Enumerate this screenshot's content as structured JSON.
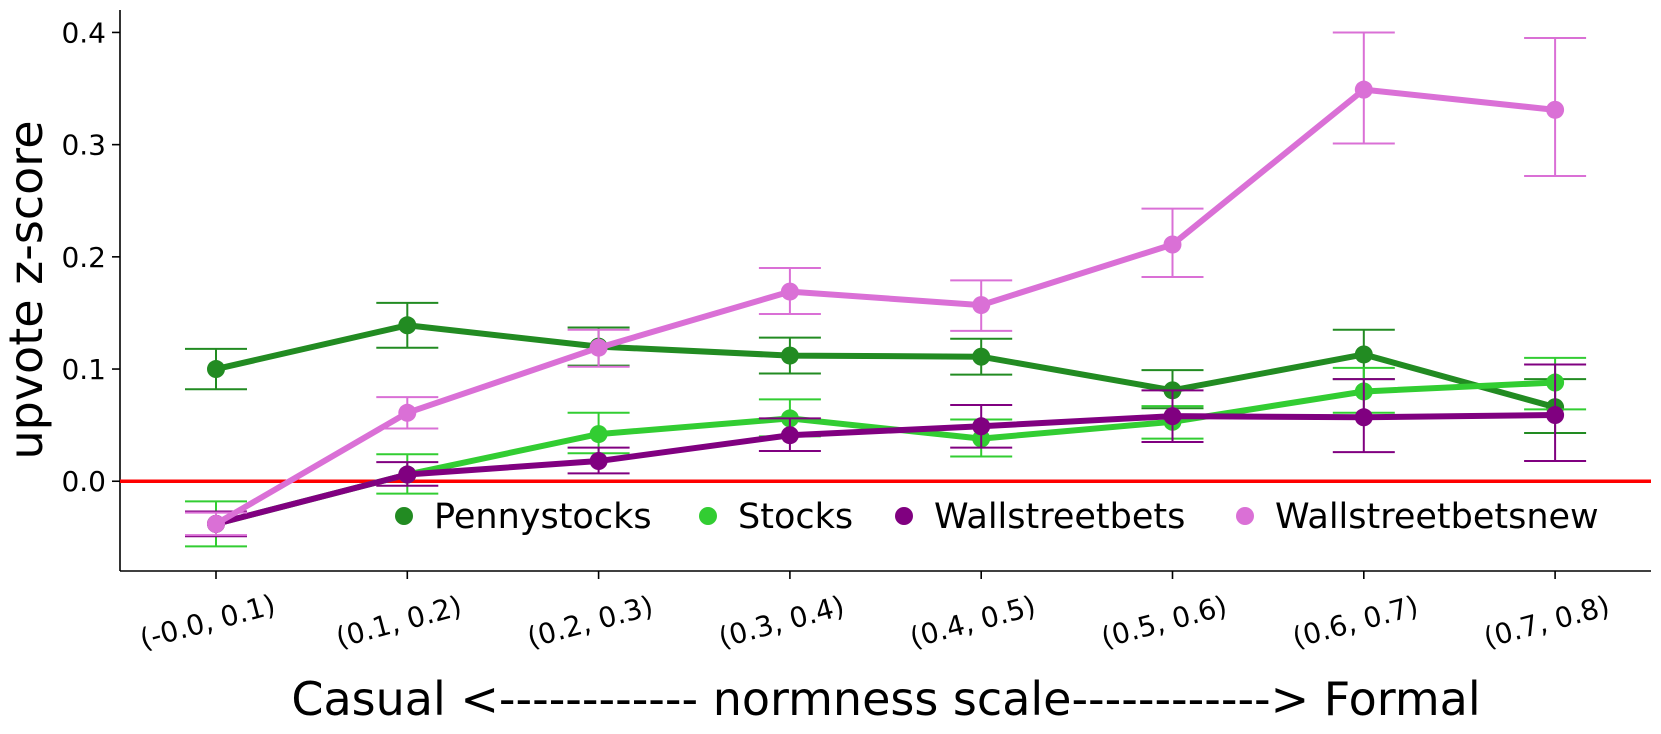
{
  "chart_data": {
    "type": "line",
    "title": "",
    "xlabel": "Casual <------------ normness scale------------> Formal",
    "ylabel": "upvote z-score",
    "categories": [
      "(-0.0, 0.1)",
      "(0.1, 0.2)",
      "(0.2, 0.3)",
      "(0.3, 0.4)",
      "(0.4, 0.5)",
      "(0.5, 0.6)",
      "(0.6, 0.7)",
      "(0.7, 0.8)"
    ],
    "ylim": [
      -0.08,
      0.42
    ],
    "yticks": [
      0.0,
      0.1,
      0.2,
      0.3,
      0.4
    ],
    "ytick_labels": [
      "0.0",
      "0.1",
      "0.2",
      "0.3",
      "0.4"
    ],
    "reference_line": {
      "y": 0.0,
      "color": "#ff0000"
    },
    "legend_position": "lower-right",
    "series": [
      {
        "name": "Pennystocks",
        "color": "#228b22",
        "values": [
          0.1,
          0.139,
          0.12,
          0.112,
          0.111,
          0.081,
          0.113,
          0.066
        ],
        "err_low": [
          0.082,
          0.119,
          0.103,
          0.096,
          0.095,
          0.065,
          0.091,
          0.043
        ],
        "err_high": [
          0.118,
          0.159,
          0.137,
          0.128,
          0.127,
          0.099,
          0.135,
          0.091
        ]
      },
      {
        "name": "Stocks",
        "color": "#32cd32",
        "values": [
          -0.038,
          0.006,
          0.042,
          0.056,
          0.038,
          0.053,
          0.08,
          0.088
        ],
        "err_low": [
          -0.058,
          -0.011,
          0.025,
          0.04,
          0.022,
          0.038,
          0.061,
          0.064
        ],
        "err_high": [
          -0.018,
          0.024,
          0.061,
          0.073,
          0.055,
          0.067,
          0.101,
          0.11
        ]
      },
      {
        "name": "Wallstreetbets",
        "color": "#800080",
        "values": [
          -0.038,
          0.006,
          0.018,
          0.041,
          0.049,
          0.058,
          0.057,
          0.059
        ],
        "err_low": [
          -0.049,
          -0.004,
          0.007,
          0.027,
          0.03,
          0.035,
          0.026,
          0.018
        ],
        "err_high": [
          -0.027,
          0.017,
          0.03,
          0.056,
          0.068,
          0.081,
          0.091,
          0.104
        ]
      },
      {
        "name": "Wallstreetbetsnew",
        "color": "#da70d6",
        "values": [
          -0.038,
          0.061,
          0.119,
          0.169,
          0.157,
          0.211,
          0.349,
          0.331
        ],
        "err_low": [
          -0.048,
          0.047,
          0.102,
          0.149,
          0.134,
          0.182,
          0.301,
          0.272
        ],
        "err_high": [
          -0.028,
          0.075,
          0.135,
          0.19,
          0.179,
          0.243,
          0.4,
          0.395
        ]
      }
    ]
  }
}
